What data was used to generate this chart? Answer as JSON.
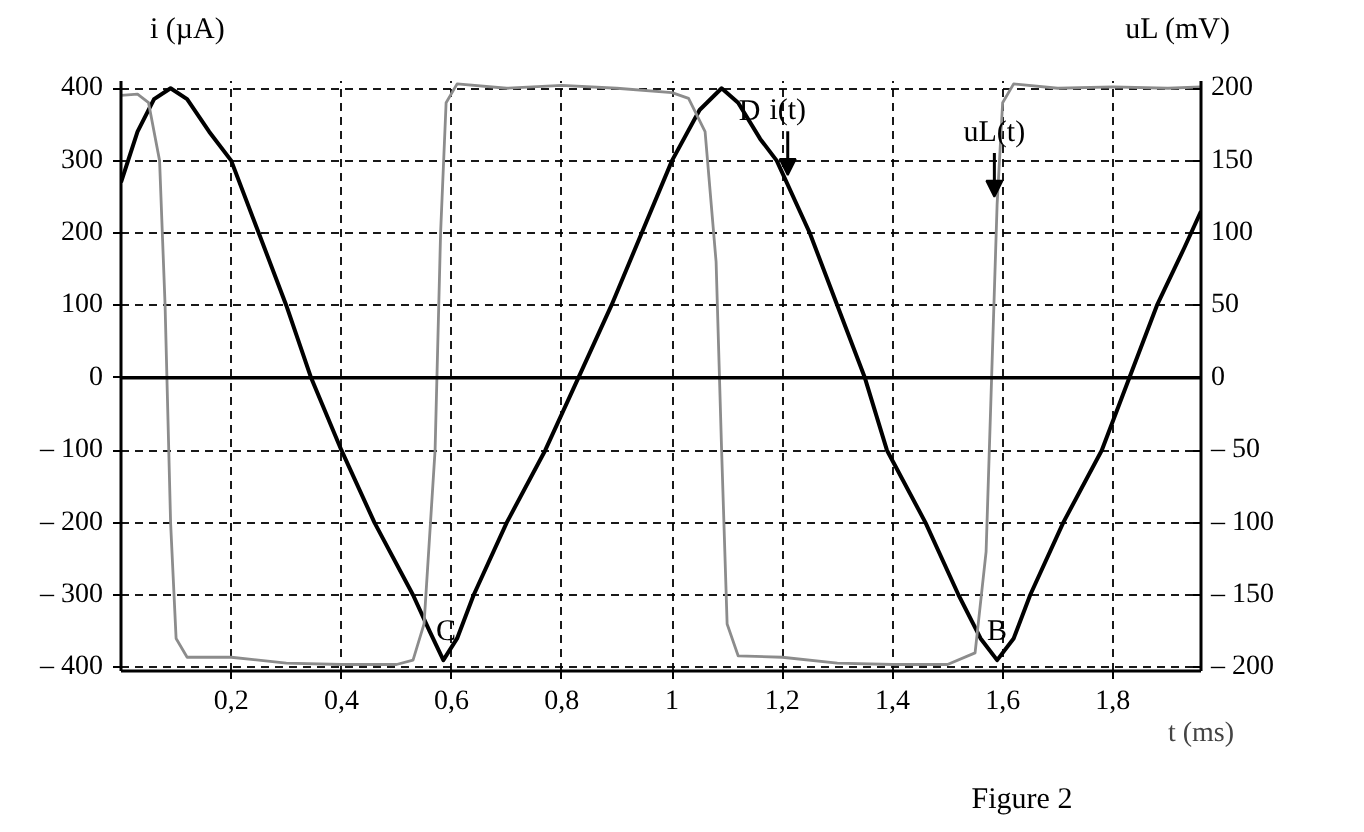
{
  "chart_data": {
    "type": "line",
    "xlabel": "t (ms)",
    "ylabel": "i (µA)",
    "y2label": "uL (mV)",
    "xlim": [
      0,
      1.96
    ],
    "ylim": [
      -405,
      410
    ],
    "y2lim": [
      -202.5,
      205
    ],
    "xticks": [
      {
        "value": 0.2,
        "label": "0,2"
      },
      {
        "value": 0.4,
        "label": "0,4"
      },
      {
        "value": 0.6,
        "label": "0,6"
      },
      {
        "value": 0.8,
        "label": "0,8"
      },
      1,
      {
        "value": 1.2,
        "label": "1,2"
      },
      {
        "value": 1.4,
        "label": "1,4"
      },
      {
        "value": 1.6,
        "label": "1,6"
      },
      {
        "value": 1.8,
        "label": "1,8"
      }
    ],
    "yticks": [
      {
        "value": -400,
        "label": "– 400"
      },
      {
        "value": -300,
        "label": "– 300"
      },
      {
        "value": -200,
        "label": "– 200"
      },
      {
        "value": -100,
        "label": "– 100"
      },
      0,
      100,
      200,
      300,
      400
    ],
    "y2ticks": [
      {
        "value": -200,
        "label": "– 200"
      },
      {
        "value": -150,
        "label": "– 150"
      },
      {
        "value": -100,
        "label": "– 100"
      },
      {
        "value": -50,
        "label": "– 50"
      },
      0,
      50,
      100,
      150,
      200
    ],
    "grid": true,
    "ref_lines": [
      {
        "axis": "y",
        "value": 0,
        "color": "#000000",
        "line_style": "solid"
      }
    ],
    "series": [
      {
        "color": "#000000",
        "x": [
          0,
          0.03,
          0.06,
          0.09,
          0.12,
          0.16,
          0.2,
          0.25,
          0.3,
          0.345,
          0.4,
          0.46,
          0.53,
          0.56,
          0.585,
          0.61,
          0.64,
          0.7,
          0.77,
          0.83,
          0.89,
          0.945,
          1.0,
          1.05,
          1.09,
          1.12,
          1.16,
          1.19,
          1.25,
          1.3,
          1.35,
          1.39,
          1.46,
          1.52,
          1.56,
          1.59,
          1.62,
          1.65,
          1.71,
          1.78,
          1.83,
          1.88,
          1.93,
          1.96
        ],
        "values": [
          270,
          340,
          385,
          400,
          385,
          340,
          300,
          200,
          100,
          0,
          -100,
          -200,
          -300,
          -350,
          -390,
          -360,
          -300,
          -200,
          -100,
          0,
          100,
          200,
          300,
          370,
          400,
          380,
          330,
          300,
          200,
          100,
          0,
          -100,
          -200,
          -300,
          -360,
          -390,
          -360,
          -300,
          -200,
          -100,
          0,
          100,
          180,
          230
        ]
      },
      {
        "color": "#8c8c8c",
        "axis": "y2",
        "x": [
          0,
          0.03,
          0.05,
          0.07,
          0.08,
          0.09,
          0.1,
          0.12,
          0.2,
          0.3,
          0.4,
          0.5,
          0.53,
          0.55,
          0.57,
          0.58,
          0.59,
          0.61,
          0.7,
          0.8,
          0.9,
          1.0,
          1.03,
          1.06,
          1.08,
          1.09,
          1.1,
          1.12,
          1.2,
          1.3,
          1.4,
          1.5,
          1.55,
          1.57,
          1.58,
          1.59,
          1.6,
          1.62,
          1.7,
          1.8,
          1.9,
          1.96
        ],
        "values": [
          195,
          196,
          190,
          150,
          50,
          -100,
          -180,
          -193,
          -193,
          -197,
          -198,
          -198,
          -195,
          -170,
          -50,
          100,
          190,
          203,
          200,
          202,
          200,
          197,
          193,
          170,
          80,
          -50,
          -170,
          -192,
          -193,
          -197,
          -198,
          -198,
          -190,
          -120,
          0,
          120,
          190,
          203,
          200,
          201,
          200,
          201
        ]
      }
    ],
    "annotations": [
      {
        "text": "i(t)",
        "x": 1.21,
        "y": 280
      },
      {
        "text": "uL(t)",
        "x": 1.585,
        "y": 250
      },
      {
        "text": "C",
        "x": 0.59,
        "y": -390
      },
      {
        "text": "D",
        "x": 1.09,
        "y": 400
      },
      {
        "text": "B",
        "x": 1.59,
        "y": -390
      },
      "Figure 2"
    ]
  }
}
